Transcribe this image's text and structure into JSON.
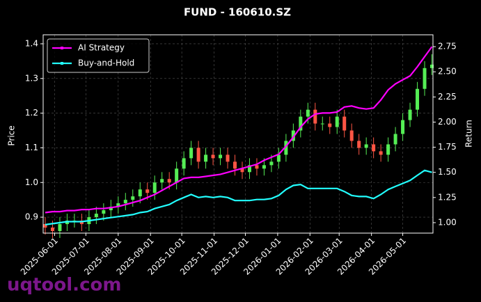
{
  "chart_data": {
    "type": "candlestick",
    "title": "FUND - 160610.SZ",
    "y_label": "Price",
    "y2_label": "Return",
    "watermark": "uqtool.com",
    "x": [
      "2025-05-23",
      "2025-05-30",
      "2025-06-06",
      "2025-06-13",
      "2025-06-20",
      "2025-06-27",
      "2025-07-04",
      "2025-07-11",
      "2025-07-18",
      "2025-07-25",
      "2025-08-01",
      "2025-08-08",
      "2025-08-15",
      "2025-08-22",
      "2025-08-29",
      "2025-09-05",
      "2025-09-12",
      "2025-09-19",
      "2025-09-26",
      "2025-10-03",
      "2025-10-10",
      "2025-10-17",
      "2025-10-24",
      "2025-10-31",
      "2025-11-07",
      "2025-11-14",
      "2025-11-21",
      "2025-11-28",
      "2025-12-05",
      "2025-12-12",
      "2025-12-19",
      "2025-12-26",
      "2026-01-02",
      "2026-01-09",
      "2026-01-16",
      "2026-01-23",
      "2026-01-30",
      "2026-02-06",
      "2026-02-13",
      "2026-02-20",
      "2026-02-27",
      "2026-03-06",
      "2026-03-13",
      "2026-03-20",
      "2026-03-27",
      "2026-04-03",
      "2026-04-10",
      "2026-04-17",
      "2026-04-24",
      "2026-05-01",
      "2026-05-08",
      "2026-05-15",
      "2026-05-22",
      "2026-05-29"
    ],
    "open": [
      0.88,
      0.87,
      0.86,
      0.88,
      0.89,
      0.89,
      0.88,
      0.9,
      0.91,
      0.92,
      0.93,
      0.94,
      0.95,
      0.96,
      0.98,
      0.97,
      1.0,
      1.01,
      1.0,
      1.04,
      1.07,
      1.1,
      1.06,
      1.08,
      1.07,
      1.08,
      1.06,
      1.04,
      1.03,
      1.05,
      1.04,
      1.05,
      1.06,
      1.08,
      1.12,
      1.15,
      1.19,
      1.21,
      1.17,
      1.17,
      1.16,
      1.19,
      1.15,
      1.12,
      1.1,
      1.11,
      1.09,
      1.08,
      1.11,
      1.14,
      1.18,
      1.21,
      1.27,
      1.33
    ],
    "high": [
      0.9,
      0.89,
      0.9,
      0.91,
      0.91,
      0.91,
      0.92,
      0.93,
      0.94,
      0.95,
      0.96,
      0.97,
      0.98,
      1.0,
      1.0,
      1.02,
      1.03,
      1.03,
      1.06,
      1.09,
      1.12,
      1.12,
      1.1,
      1.1,
      1.1,
      1.1,
      1.08,
      1.06,
      1.07,
      1.07,
      1.07,
      1.08,
      1.1,
      1.14,
      1.17,
      1.21,
      1.23,
      1.23,
      1.19,
      1.19,
      1.21,
      1.21,
      1.17,
      1.14,
      1.13,
      1.13,
      1.11,
      1.13,
      1.16,
      1.2,
      1.23,
      1.29,
      1.35,
      1.37
    ],
    "low": [
      0.85,
      0.84,
      0.84,
      0.86,
      0.87,
      0.86,
      0.86,
      0.88,
      0.89,
      0.9,
      0.91,
      0.92,
      0.93,
      0.94,
      0.95,
      0.95,
      0.98,
      0.98,
      0.98,
      1.02,
      1.05,
      1.04,
      1.04,
      1.05,
      1.05,
      1.04,
      1.02,
      1.01,
      1.01,
      1.02,
      1.02,
      1.03,
      1.04,
      1.06,
      1.1,
      1.13,
      1.17,
      1.15,
      1.15,
      1.14,
      1.14,
      1.13,
      1.1,
      1.08,
      1.08,
      1.07,
      1.06,
      1.06,
      1.09,
      1.12,
      1.16,
      1.19,
      1.25,
      1.31
    ],
    "close": [
      0.87,
      0.86,
      0.88,
      0.89,
      0.89,
      0.88,
      0.9,
      0.91,
      0.92,
      0.93,
      0.94,
      0.95,
      0.96,
      0.98,
      0.97,
      1.0,
      1.01,
      1.0,
      1.04,
      1.07,
      1.1,
      1.06,
      1.08,
      1.07,
      1.08,
      1.06,
      1.04,
      1.03,
      1.05,
      1.04,
      1.05,
      1.06,
      1.08,
      1.12,
      1.15,
      1.19,
      1.21,
      1.17,
      1.17,
      1.16,
      1.19,
      1.15,
      1.12,
      1.1,
      1.11,
      1.09,
      1.08,
      1.11,
      1.14,
      1.18,
      1.21,
      1.27,
      1.33,
      1.34
    ],
    "up_color": "#55ee55",
    "down_color": "#ff5544",
    "series": [
      {
        "name": "AI Strategy",
        "color": "#ff00ff",
        "axis": "y2",
        "values": [
          1.1,
          1.11,
          1.11,
          1.12,
          1.12,
          1.13,
          1.13,
          1.14,
          1.14,
          1.15,
          1.16,
          1.18,
          1.2,
          1.22,
          1.25,
          1.28,
          1.32,
          1.36,
          1.4,
          1.44,
          1.45,
          1.45,
          1.46,
          1.47,
          1.48,
          1.5,
          1.52,
          1.54,
          1.56,
          1.58,
          1.62,
          1.65,
          1.68,
          1.76,
          1.85,
          1.95,
          2.03,
          2.08,
          2.09,
          2.09,
          2.1,
          2.15,
          2.16,
          2.14,
          2.13,
          2.14,
          2.22,
          2.32,
          2.38,
          2.42,
          2.46,
          2.55,
          2.65,
          2.75
        ]
      },
      {
        "name": "Buy-and-Hold",
        "color": "#22ffff",
        "axis": "y2",
        "values": [
          0.98,
          0.99,
          1.0,
          1.01,
          1.01,
          1.01,
          1.02,
          1.03,
          1.04,
          1.05,
          1.06,
          1.07,
          1.08,
          1.1,
          1.11,
          1.14,
          1.16,
          1.18,
          1.22,
          1.25,
          1.28,
          1.25,
          1.26,
          1.25,
          1.26,
          1.25,
          1.22,
          1.22,
          1.22,
          1.23,
          1.23,
          1.24,
          1.27,
          1.33,
          1.37,
          1.38,
          1.34,
          1.34,
          1.34,
          1.34,
          1.34,
          1.31,
          1.27,
          1.26,
          1.26,
          1.24,
          1.28,
          1.33,
          1.36,
          1.39,
          1.42,
          1.47,
          1.52,
          1.5
        ]
      }
    ],
    "xlim": [
      "2025-05-21",
      "2026-05-30"
    ],
    "xticks": [
      "2025-06-01",
      "2025-07-01",
      "2025-08-01",
      "2025-09-01",
      "2025-10-01",
      "2025-11-01",
      "2025-12-01",
      "2026-01-01",
      "2026-02-01",
      "2026-03-01",
      "2026-04-01",
      "2026-05-01"
    ],
    "ylim": [
      0.854,
      1.426
    ],
    "yticks": [
      {
        "value": 0.9,
        "label": "0.9"
      },
      {
        "value": 1.0,
        "label": "1.0"
      },
      {
        "value": 1.1,
        "label": "1.1"
      },
      {
        "value": 1.2,
        "label": "1.2"
      },
      {
        "value": 1.3,
        "label": "1.3"
      },
      {
        "value": 1.4,
        "label": "1.4"
      }
    ],
    "y2lim": [
      0.896,
      2.868
    ],
    "y2ticks": [
      {
        "value": 1.0,
        "label": "1.00"
      },
      {
        "value": 1.25,
        "label": "1.25"
      },
      {
        "value": 1.5,
        "label": "1.50"
      },
      {
        "value": 1.75,
        "label": "1.75"
      },
      {
        "value": 2.0,
        "label": "2.00"
      },
      {
        "value": 2.25,
        "label": "2.25"
      },
      {
        "value": 2.5,
        "label": "2.50"
      },
      {
        "value": 2.75,
        "label": "2.75"
      }
    ],
    "grid": true,
    "legend": "upper left"
  }
}
